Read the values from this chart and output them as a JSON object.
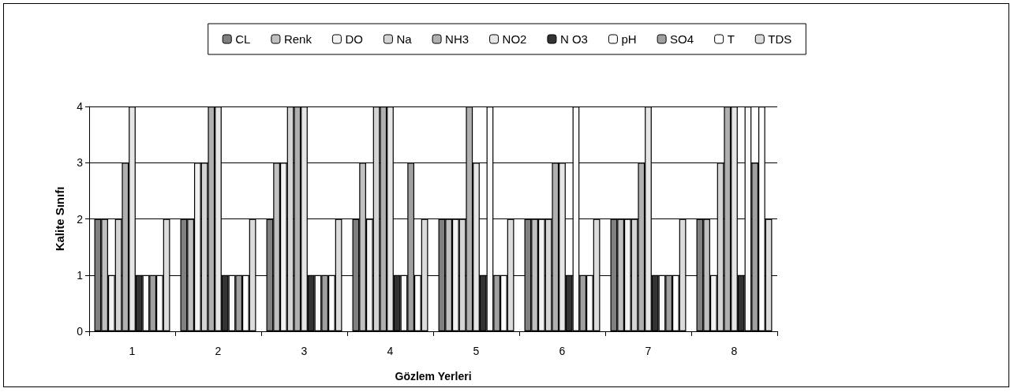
{
  "chart_data": {
    "type": "bar",
    "xlabel": "Gözlem Yerleri",
    "ylabel": "Kalite Sınıfı",
    "categories": [
      "1",
      "2",
      "3",
      "4",
      "5",
      "6",
      "7",
      "8"
    ],
    "ylim": [
      0,
      4
    ],
    "yticks": [
      0,
      1,
      2,
      3,
      4
    ],
    "grid": "y",
    "legend": "top",
    "series": [
      {
        "name": "CL",
        "color": "#808080",
        "values": [
          2,
          2,
          2,
          2,
          2,
          2,
          2,
          2
        ]
      },
      {
        "name": "Renk",
        "color": "#c0c0c0",
        "values": [
          2,
          2,
          3,
          3,
          2,
          2,
          2,
          2
        ]
      },
      {
        "name": "DO",
        "color": "#f2f2f2",
        "values": [
          1,
          3,
          3,
          2,
          2,
          2,
          2,
          1
        ]
      },
      {
        "name": "Na",
        "color": "#d4d4d4",
        "values": [
          2,
          3,
          4,
          4,
          2,
          2,
          2,
          3
        ]
      },
      {
        "name": "NH3",
        "color": "#b0b0b0",
        "values": [
          3,
          4,
          4,
          4,
          4,
          3,
          3,
          4
        ]
      },
      {
        "name": "NO2",
        "color": "#e6e6e6",
        "values": [
          4,
          4,
          4,
          4,
          3,
          3,
          4,
          4
        ]
      },
      {
        "name": "N O3",
        "color": "#333333",
        "values": [
          1,
          1,
          1,
          1,
          1,
          1,
          1,
          1
        ]
      },
      {
        "name": "pH",
        "color": "#fafafa",
        "values": [
          1,
          1,
          1,
          1,
          4,
          4,
          1,
          4
        ]
      },
      {
        "name": "SO4",
        "color": "#a0a0a0",
        "values": [
          1,
          1,
          1,
          3,
          1,
          1,
          1,
          3
        ]
      },
      {
        "name": "T",
        "color": "#ffffff",
        "values": [
          1,
          1,
          1,
          1,
          1,
          1,
          1,
          4
        ]
      },
      {
        "name": "TDS",
        "color": "#dcdcdc",
        "values": [
          2,
          2,
          2,
          2,
          2,
          2,
          2,
          2
        ]
      }
    ]
  }
}
